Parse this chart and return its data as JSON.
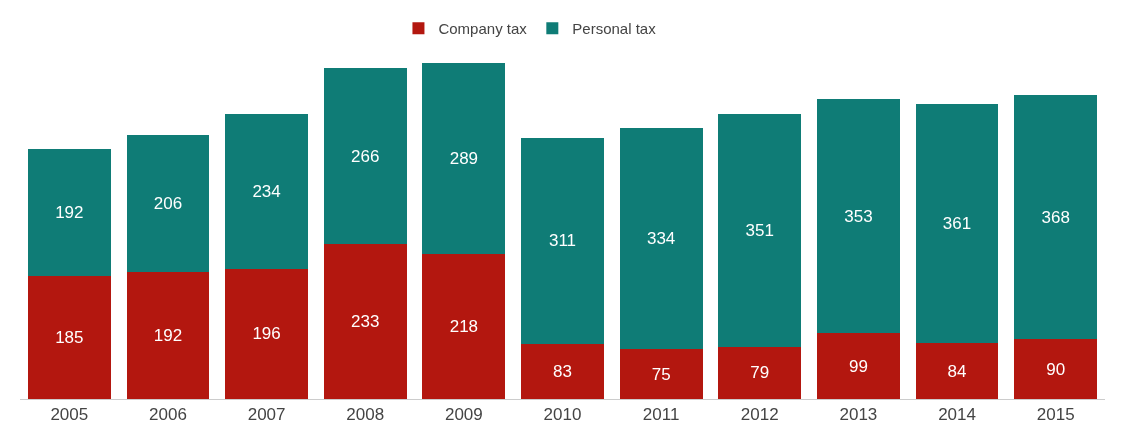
{
  "chart_data": {
    "type": "bar",
    "stacked": true,
    "data_labels": true,
    "legend": "top",
    "categories": [
      "2005",
      "2006",
      "2007",
      "2008",
      "2009",
      "2010",
      "2011",
      "2012",
      "2013",
      "2014",
      "2015"
    ],
    "series": [
      {
        "name": "Company tax",
        "color": "#b3170f",
        "values": [
          185,
          192,
          196,
          233,
          218,
          83,
          75,
          79,
          99,
          84,
          90
        ]
      },
      {
        "name": "Personal tax",
        "color": "#0f7c76",
        "values": [
          192,
          206,
          234,
          266,
          289,
          311,
          334,
          351,
          353,
          361,
          368
        ]
      }
    ]
  }
}
